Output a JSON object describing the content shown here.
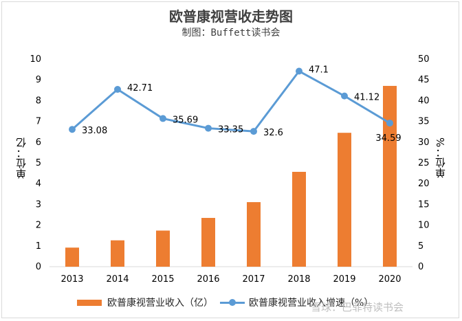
{
  "title": "欧普康视营收走势图",
  "subtitle": "制图：Buffett读书会",
  "watermark": "雪球：巴菲特读书会",
  "chart_data": {
    "type": "bar+line",
    "categories": [
      "2013",
      "2014",
      "2015",
      "2016",
      "2017",
      "2018",
      "2019",
      "2020"
    ],
    "series": [
      {
        "name": "欧普康视营业收入（亿）",
        "type": "bar",
        "axis": "left",
        "color": "#ed7d31",
        "values": [
          0.92,
          1.27,
          1.74,
          2.35,
          3.11,
          4.57,
          6.45,
          8.71
        ]
      },
      {
        "name": "欧普康视营业收入增速（%）",
        "type": "line",
        "axis": "right",
        "color": "#5b9bd5",
        "values": [
          33.08,
          42.71,
          35.69,
          33.35,
          32.6,
          47.1,
          41.12,
          34.59
        ],
        "labels": [
          "33.08",
          "42.71",
          "35.69",
          "33.35",
          "32.6",
          "47.1",
          "41.12",
          "34.59"
        ]
      }
    ],
    "y_left": {
      "label": "单位：亿",
      "min": 0,
      "max": 10,
      "step": 1
    },
    "y_right": {
      "label": "单位：%",
      "min": 0,
      "max": 50,
      "step": 5
    },
    "legend_position": "bottom"
  }
}
